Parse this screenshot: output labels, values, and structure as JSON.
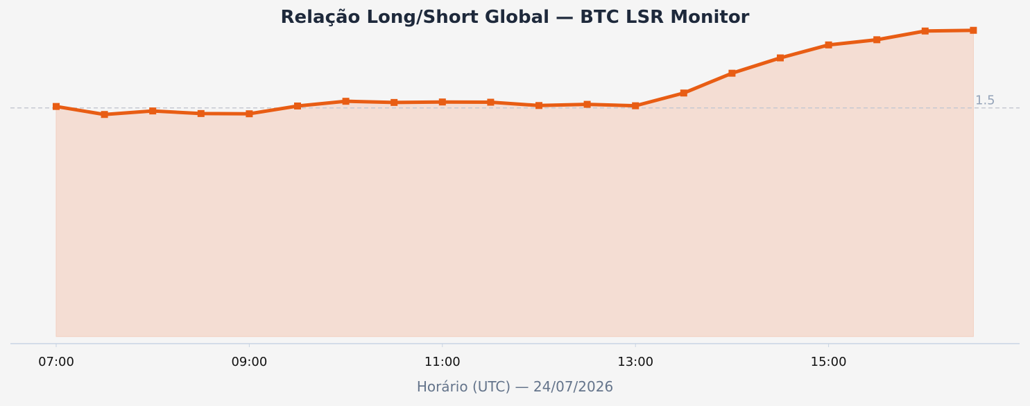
{
  "chart_data": {
    "type": "area",
    "title": "Relação Long/Short Global — BTC LSR Monitor",
    "xlabel": "Horário (UTC) — 24/07/2026",
    "ylabel": "",
    "x": [
      "07:00",
      "07:30",
      "08:00",
      "08:30",
      "09:00",
      "09:30",
      "10:00",
      "10:30",
      "11:00",
      "11:30",
      "12:00",
      "12:30",
      "13:00",
      "13:30",
      "14:00",
      "14:30",
      "15:00",
      "15:30",
      "16:00",
      "16:30"
    ],
    "x_ticks": [
      "07:00",
      "09:00",
      "11:00",
      "13:00",
      "15:00"
    ],
    "series": [
      {
        "values": [
          1.506,
          1.472,
          1.487,
          1.476,
          1.475,
          1.508,
          1.528,
          1.523,
          1.525,
          1.524,
          1.51,
          1.515,
          1.509,
          1.563,
          1.647,
          1.712,
          1.767,
          1.789,
          1.826,
          1.829
        ]
      }
    ],
    "ylim": [
      0.5,
      1.84
    ],
    "baseline": 0.53,
    "reference_line": {
      "value": 1.5,
      "label": "1.5"
    },
    "grid": false,
    "colors": {
      "line": "#e85d14",
      "fill": "#f4ddd3",
      "fill_edge": "#f2cfc0",
      "reference": "#c6c9d2",
      "axis": "#c8d4e3"
    }
  }
}
